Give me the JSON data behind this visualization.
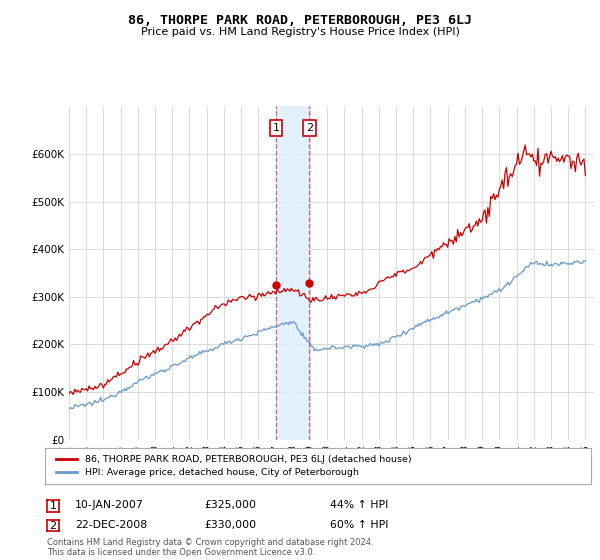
{
  "title": "86, THORPE PARK ROAD, PETERBOROUGH, PE3 6LJ",
  "subtitle": "Price paid vs. HM Land Registry's House Price Index (HPI)",
  "legend_line1": "86, THORPE PARK ROAD, PETERBOROUGH, PE3 6LJ (detached house)",
  "legend_line2": "HPI: Average price, detached house, City of Peterborough",
  "annotation1": {
    "label": "1",
    "date": "10-JAN-2007",
    "price": "£325,000",
    "pct": "44% ↑ HPI"
  },
  "annotation2": {
    "label": "2",
    "date": "22-DEC-2008",
    "price": "£330,000",
    "pct": "60% ↑ HPI"
  },
  "footer": "Contains HM Land Registry data © Crown copyright and database right 2024.\nThis data is licensed under the Open Government Licence v3.0.",
  "sale1_year": 2007.03,
  "sale2_year": 2008.97,
  "sale1_price": 325000,
  "sale2_price": 330000,
  "red_color": "#cc0000",
  "blue_color": "#6699cc",
  "shade_color": "#ddeeff",
  "bg_color": "#ffffff",
  "grid_color": "#cccccc",
  "ylim": [
    0,
    700000
  ],
  "xlim_start": 1995,
  "xlim_end": 2025.5
}
